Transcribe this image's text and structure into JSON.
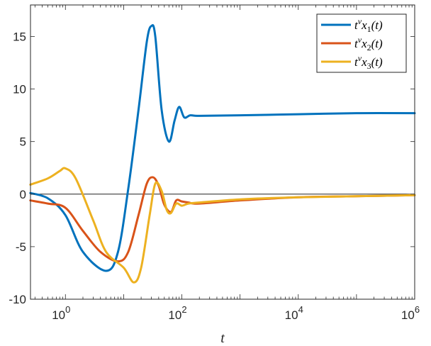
{
  "chart_data": {
    "type": "line",
    "title": "",
    "xlabel": "t",
    "ylabel": "",
    "xscale": "log",
    "xlim_exponents": [
      -0.6,
      6
    ],
    "ylim": [
      -10,
      18
    ],
    "grid": false,
    "legend_position": "top-right",
    "x_ticks": [
      {
        "value": 1,
        "base": "10",
        "exp": "0"
      },
      {
        "value": 100,
        "base": "10",
        "exp": "2"
      },
      {
        "value": 10000,
        "base": "10",
        "exp": "4"
      },
      {
        "value": 1000000,
        "base": "10",
        "exp": "6"
      }
    ],
    "y_ticks": [
      {
        "value": 15,
        "label": "15"
      },
      {
        "value": 10,
        "label": "10"
      },
      {
        "value": 5,
        "label": "5"
      },
      {
        "value": 0,
        "label": "0"
      },
      {
        "value": -5,
        "label": "-5"
      },
      {
        "value": -10,
        "label": "-10"
      }
    ],
    "zero_line": 0,
    "series": [
      {
        "name": "t^ν x_1(t)",
        "legend": {
          "base": "t",
          "sup": "ν",
          "mid": "x",
          "sub": "1",
          "tail": "(t)"
        },
        "color": "#0072BD",
        "points": [
          [
            0.25,
            0.1
          ],
          [
            0.5,
            -0.4
          ],
          [
            1,
            -2
          ],
          [
            2,
            -5.5
          ],
          [
            5,
            -7.3
          ],
          [
            8,
            -5.5
          ],
          [
            12,
            0.5
          ],
          [
            18,
            8
          ],
          [
            25,
            14.5
          ],
          [
            30,
            16
          ],
          [
            35,
            15
          ],
          [
            45,
            8
          ],
          [
            60,
            5
          ],
          [
            75,
            7
          ],
          [
            90,
            8.3
          ],
          [
            110,
            7.3
          ],
          [
            140,
            7.5
          ],
          [
            200,
            7.45
          ],
          [
            1000,
            7.5
          ],
          [
            10000,
            7.6
          ],
          [
            100000,
            7.7
          ],
          [
            1000000,
            7.7
          ]
        ]
      },
      {
        "name": "t^ν x_2(t)",
        "legend": {
          "base": "t",
          "sup": "ν",
          "mid": "x",
          "sub": "2",
          "tail": "(t)"
        },
        "color": "#D95319",
        "points": [
          [
            0.25,
            -0.6
          ],
          [
            0.5,
            -0.9
          ],
          [
            1,
            -1.3
          ],
          [
            2,
            -3.5
          ],
          [
            4,
            -5.5
          ],
          [
            8,
            -6.4
          ],
          [
            12,
            -5.5
          ],
          [
            18,
            -2
          ],
          [
            25,
            1
          ],
          [
            32,
            1.6
          ],
          [
            40,
            0.8
          ],
          [
            50,
            -1
          ],
          [
            65,
            -1.7
          ],
          [
            80,
            -0.6
          ],
          [
            100,
            -0.7
          ],
          [
            130,
            -0.8
          ],
          [
            200,
            -0.9
          ],
          [
            1000,
            -0.6
          ],
          [
            10000,
            -0.3
          ],
          [
            100000,
            -0.2
          ],
          [
            1000000,
            -0.1
          ]
        ]
      },
      {
        "name": "t^ν x_3(t)",
        "legend": {
          "base": "t",
          "sup": "ν",
          "mid": "x",
          "sub": "3",
          "tail": "(t)"
        },
        "color": "#EDB120",
        "points": [
          [
            0.25,
            0.9
          ],
          [
            0.5,
            1.5
          ],
          [
            0.8,
            2.2
          ],
          [
            1,
            2.45
          ],
          [
            1.5,
            1.5
          ],
          [
            3,
            -2.5
          ],
          [
            5,
            -5.5
          ],
          [
            10,
            -7
          ],
          [
            15,
            -8.4
          ],
          [
            20,
            -7
          ],
          [
            28,
            -2
          ],
          [
            35,
            1
          ],
          [
            45,
            0.3
          ],
          [
            55,
            -1.5
          ],
          [
            65,
            -1.8
          ],
          [
            80,
            -0.9
          ],
          [
            100,
            -1.1
          ],
          [
            130,
            -0.9
          ],
          [
            200,
            -0.8
          ],
          [
            1000,
            -0.5
          ],
          [
            10000,
            -0.3
          ],
          [
            100000,
            -0.2
          ],
          [
            1000000,
            -0.1
          ]
        ]
      }
    ]
  }
}
